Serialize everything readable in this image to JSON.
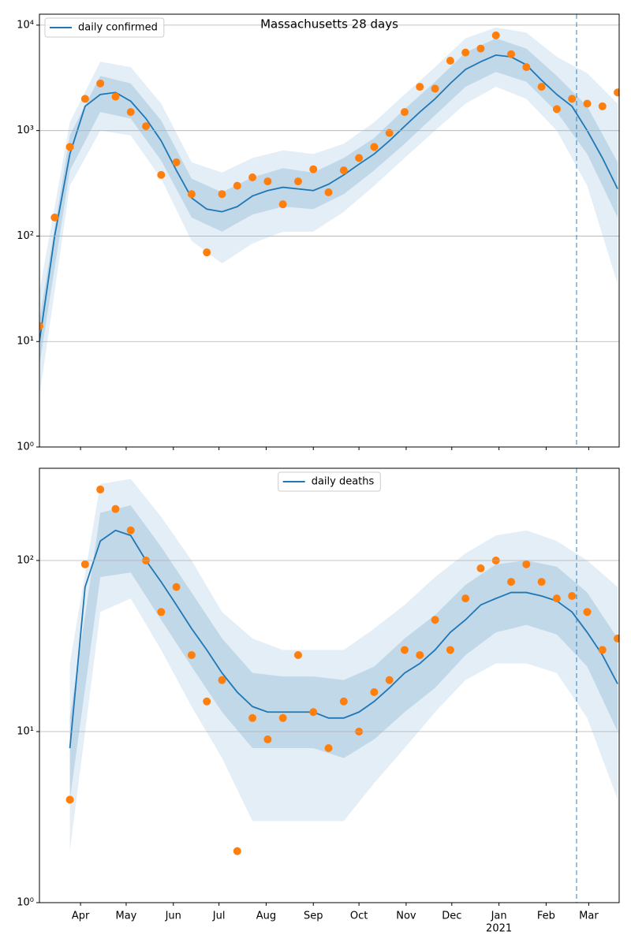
{
  "chart_data": [
    {
      "type": "line",
      "title": "Massachusetts 28 days",
      "log_y": true,
      "grid": true,
      "legend": "upper left",
      "x": [
        0,
        10,
        20,
        30,
        40,
        50,
        60,
        70,
        80,
        90,
        100,
        110,
        120,
        130,
        140,
        150,
        160,
        170,
        180,
        190,
        200,
        210,
        220,
        230,
        240,
        250,
        260,
        270,
        280,
        290,
        300,
        310,
        320,
        330,
        340,
        350,
        360,
        370,
        380
      ],
      "series": [
        {
          "name": "daily confirmed",
          "color": "#1f77b4",
          "values": [
            10,
            100,
            600,
            1700,
            2200,
            2300,
            1900,
            1300,
            800,
            420,
            230,
            180,
            170,
            190,
            240,
            270,
            290,
            280,
            270,
            310,
            380,
            480,
            600,
            800,
            1100,
            1500,
            2000,
            2800,
            3800,
            4500,
            5200,
            5000,
            4200,
            3000,
            2200,
            1700,
            1000,
            550,
            280
          ]
        }
      ],
      "observed": {
        "color": "#ff7f0e",
        "values": [
          14,
          150,
          700,
          2000,
          2800,
          2100,
          1500,
          1100,
          380,
          500,
          250,
          70,
          250,
          300,
          360,
          330,
          200,
          330,
          430,
          260,
          420,
          550,
          700,
          950,
          1500,
          2600,
          2500,
          4600,
          5500,
          6000,
          8000,
          5300,
          4000,
          2600,
          1600,
          2000,
          1800,
          1700,
          2300
        ]
      },
      "band_x": [
        0,
        20,
        40,
        60,
        80,
        100,
        120,
        140,
        160,
        180,
        200,
        220,
        240,
        260,
        280,
        300,
        320,
        340,
        360,
        380
      ],
      "bands": [
        {
          "color": "#1f77b4",
          "opacity": 0.12,
          "lower": [
            3,
            300,
            1000,
            900,
            350,
            90,
            55,
            85,
            110,
            110,
            170,
            300,
            550,
            1000,
            1800,
            2600,
            2000,
            1000,
            300,
            35
          ],
          "upper": [
            30,
            1200,
            4500,
            4000,
            1800,
            500,
            400,
            550,
            650,
            600,
            750,
            1200,
            2200,
            4000,
            7500,
            9500,
            8500,
            5000,
            3500,
            1800
          ]
        },
        {
          "color": "#1f77b4",
          "opacity": 0.18,
          "lower": [
            6,
            420,
            1500,
            1300,
            520,
            150,
            110,
            160,
            190,
            180,
            250,
            420,
            750,
            1400,
            2600,
            3600,
            2900,
            1500,
            600,
            150
          ],
          "upper": [
            16,
            900,
            3300,
            2800,
            1250,
            350,
            260,
            360,
            440,
            400,
            550,
            850,
            1600,
            2900,
            5500,
            7500,
            6000,
            3300,
            1700,
            500
          ]
        }
      ],
      "xlim": [
        0,
        381
      ],
      "xticks": [
        27,
        57,
        88,
        118,
        149,
        180,
        210,
        241,
        271,
        302,
        333,
        361
      ],
      "ylim": [
        1,
        12700
      ],
      "yticks": [
        {
          "value": 1,
          "label": "10⁰"
        },
        {
          "value": 10,
          "label": "10¹"
        },
        {
          "value": 100,
          "label": "10²"
        },
        {
          "value": 1000,
          "label": "10³"
        },
        {
          "value": 10000,
          "label": "10⁴"
        }
      ],
      "vline": {
        "x": 353,
        "color": "#1f77b4"
      }
    },
    {
      "type": "line",
      "log_y": true,
      "grid": true,
      "legend": "upper center",
      "x": [
        0,
        10,
        20,
        30,
        40,
        50,
        60,
        70,
        80,
        90,
        100,
        110,
        120,
        130,
        140,
        150,
        160,
        170,
        180,
        190,
        200,
        210,
        220,
        230,
        240,
        250,
        260,
        270,
        280,
        290,
        300,
        310,
        320,
        330,
        340,
        350,
        360,
        370,
        380
      ],
      "series": [
        {
          "name": "daily deaths",
          "color": "#1f77b4",
          "values": [
            null,
            null,
            8,
            70,
            130,
            150,
            140,
            100,
            75,
            55,
            40,
            30,
            22,
            17,
            14,
            13,
            13,
            13,
            13,
            12,
            12,
            13,
            15,
            18,
            22,
            25,
            30,
            38,
            45,
            55,
            60,
            65,
            65,
            62,
            58,
            50,
            38,
            28,
            19
          ]
        }
      ],
      "observed": {
        "color": "#ff7f0e",
        "values": [
          null,
          null,
          4,
          95,
          260,
          200,
          150,
          100,
          50,
          70,
          28,
          15,
          20,
          2,
          12,
          9,
          12,
          28,
          13,
          8,
          15,
          10,
          17,
          20,
          30,
          28,
          45,
          30,
          60,
          90,
          100,
          75,
          95,
          75,
          60,
          62,
          50,
          30,
          35
        ]
      },
      "band_x": [
        0,
        20,
        40,
        60,
        80,
        100,
        120,
        140,
        160,
        180,
        200,
        220,
        240,
        260,
        280,
        300,
        320,
        340,
        360,
        380
      ],
      "bands": [
        {
          "color": "#1f77b4",
          "opacity": 0.12,
          "lower": [
            null,
            2,
            50,
            60,
            30,
            14,
            7,
            3,
            3,
            3,
            3,
            5,
            8,
            13,
            20,
            25,
            25,
            22,
            12,
            4
          ],
          "upper": [
            null,
            25,
            280,
            300,
            180,
            100,
            50,
            35,
            30,
            30,
            30,
            40,
            55,
            80,
            110,
            140,
            150,
            130,
            100,
            70
          ]
        },
        {
          "color": "#1f77b4",
          "opacity": 0.18,
          "lower": [
            null,
            4,
            80,
            85,
            45,
            24,
            13,
            8,
            8,
            8,
            7,
            9,
            13,
            18,
            28,
            38,
            42,
            37,
            24,
            10
          ],
          "upper": [
            null,
            12,
            190,
            210,
            120,
            65,
            35,
            22,
            21,
            21,
            20,
            24,
            35,
            48,
            72,
            95,
            100,
            92,
            65,
            35
          ]
        }
      ],
      "xlim": [
        0,
        381
      ],
      "xticks": [
        {
          "value": 27,
          "label": "Apr"
        },
        {
          "value": 57,
          "label": "May"
        },
        {
          "value": 88,
          "label": "Jun"
        },
        {
          "value": 118,
          "label": "Jul"
        },
        {
          "value": 149,
          "label": "Aug"
        },
        {
          "value": 180,
          "label": "Sep"
        },
        {
          "value": 210,
          "label": "Oct"
        },
        {
          "value": 241,
          "label": "Nov"
        },
        {
          "value": 271,
          "label": "Dec"
        },
        {
          "value": 302,
          "label": "Jan"
        },
        {
          "value": 333,
          "label": "Feb"
        },
        {
          "value": 361,
          "label": "Mar"
        }
      ],
      "year_label": {
        "value": 302,
        "label": "2021"
      },
      "ylim": [
        1,
        346
      ],
      "yticks": [
        {
          "value": 1,
          "label": "10⁰"
        },
        {
          "value": 10,
          "label": "10¹"
        },
        {
          "value": 100,
          "label": "10²"
        }
      ],
      "vline": {
        "x": 353,
        "color": "#1f77b4"
      }
    }
  ]
}
